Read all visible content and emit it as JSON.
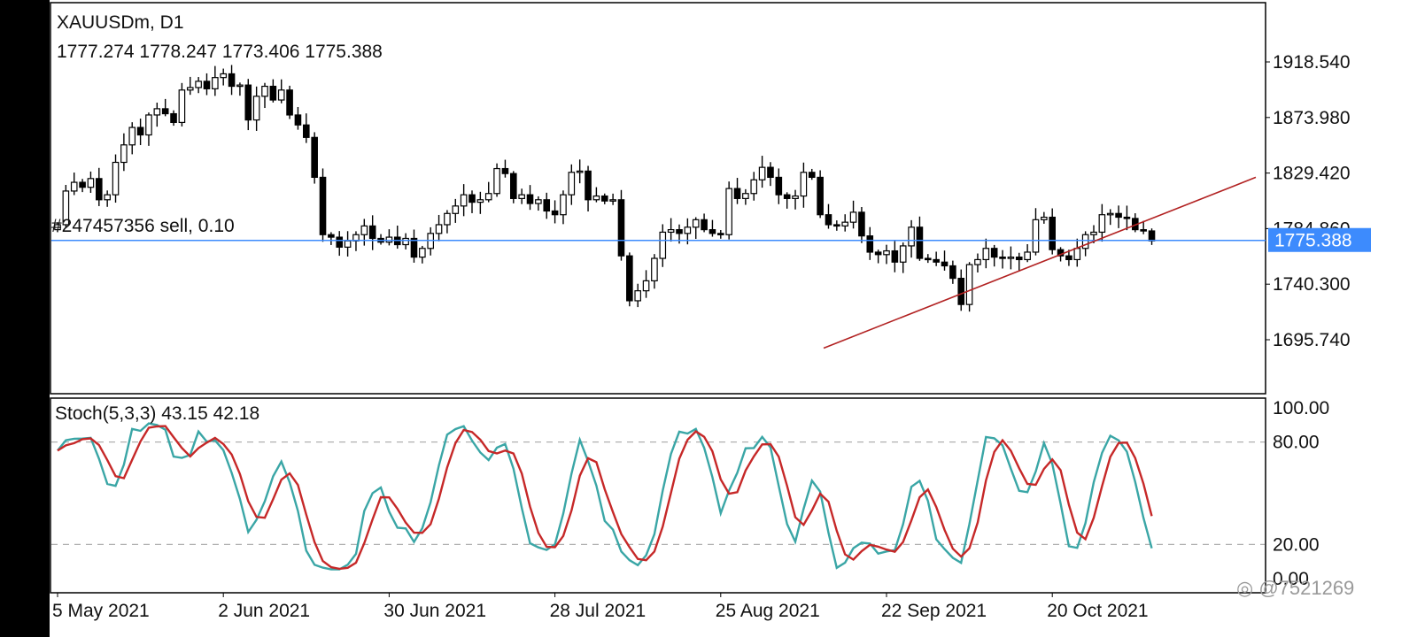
{
  "chart_data": {
    "type": "candlestick",
    "symbol": "XAUUSDm, D1",
    "ohlc_readout": "1777.274 1778.247 1773.406 1775.388",
    "price_axis_labels": [
      "1918.540",
      "1873.980",
      "1829.420",
      "1784.860",
      "1740.300",
      "1695.740"
    ],
    "price_axis_values": [
      1918.54,
      1873.98,
      1829.42,
      1784.86,
      1740.3,
      1695.74
    ],
    "current_price_label": "1775.388",
    "current_price": 1775.388,
    "order_label": "#247457356 sell, 0.10",
    "x_axis_labels": [
      "5 May 2021",
      "2 Jun 2021",
      "30 Jun 2021",
      "28 Jul 2021",
      "25 Aug 2021",
      "22 Sep 2021",
      "20 Oct 2021"
    ],
    "x_axis_bar_index": [
      0,
      20,
      40,
      60,
      80,
      100,
      120
    ],
    "closes": [
      1788,
      1815,
      1822,
      1818,
      1825,
      1808,
      1812,
      1838,
      1852,
      1866,
      1860,
      1876,
      1881,
      1877,
      1870,
      1896,
      1898,
      1903,
      1897,
      1906,
      1909,
      1899,
      1900,
      1872,
      1891,
      1899,
      1888,
      1896,
      1876,
      1868,
      1858,
      1826,
      1780,
      1778,
      1770,
      1775,
      1780,
      1787,
      1777,
      1774,
      1778,
      1772,
      1777,
      1762,
      1769,
      1781,
      1788,
      1797,
      1803,
      1812,
      1806,
      1808,
      1813,
      1833,
      1829,
      1809,
      1812,
      1805,
      1808,
      1799,
      1796,
      1812,
      1830,
      1831,
      1808,
      1811,
      1807,
      1808,
      1763,
      1727,
      1735,
      1743,
      1761,
      1782,
      1784,
      1781,
      1786,
      1792,
      1784,
      1781,
      1780,
      1817,
      1809,
      1813,
      1824,
      1834,
      1826,
      1812,
      1809,
      1811,
      1830,
      1826,
      1796,
      1788,
      1787,
      1790,
      1798,
      1779,
      1766,
      1764,
      1767,
      1758,
      1771,
      1786,
      1761,
      1760,
      1758,
      1755,
      1745,
      1724,
      1756,
      1760,
      1769,
      1762,
      1761,
      1762,
      1760,
      1766,
      1792,
      1794,
      1768,
      1763,
      1760,
      1769,
      1780,
      1782,
      1796,
      1797,
      1794,
      1793,
      1784,
      1783,
      1775
    ],
    "stoch_title": "Stoch(5,3,3) 43.15 42.18",
    "stoch_k_value": 43.15,
    "stoch_d_value": 42.18,
    "stoch_axis_labels": [
      "100.00",
      "80.00",
      "20.00",
      "0.00"
    ],
    "stoch_axis_values": [
      100,
      80,
      20,
      0
    ],
    "stoch_levels": [
      80,
      20
    ],
    "colors": {
      "background": "#ffffff",
      "frame": "#000000",
      "candle": "#000000",
      "price_line": "#3d8bfd",
      "price_badge": "#3d8bfd",
      "trendline": "#b22222",
      "stoch_main": "#3aa6a6",
      "stoch_signal": "#c62828",
      "level_line": "#b0b0b0"
    }
  },
  "watermark": "@7521269"
}
